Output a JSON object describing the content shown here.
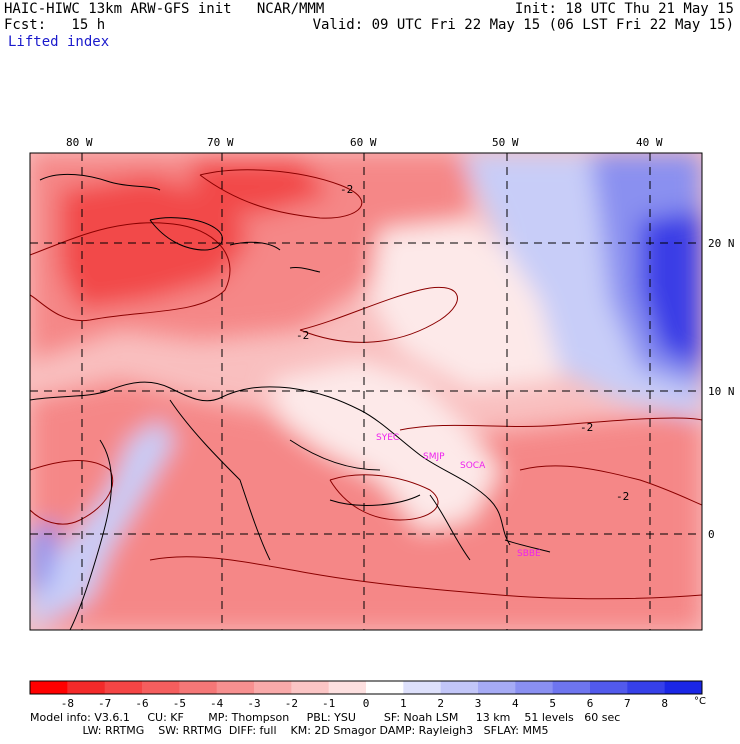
{
  "header": {
    "title": "HAIC-HIWC 13km ARW-GFS init   NCAR/MMM",
    "fcst": "Fcst:   15 h",
    "field": "Lifted index",
    "init": "Init: 18 UTC Thu 21 May 15",
    "valid": "Valid: 09 UTC Fri 22 May 15 (06 LST Fri 22 May 15)"
  },
  "map": {
    "lon_labels": [
      "80 W",
      "70 W",
      "60 W",
      "50 W",
      "40 W"
    ],
    "lat_labels": [
      "20 N",
      "10 N",
      "0"
    ],
    "contour_label": "-2",
    "stations": [
      "SYEC",
      "SMJP",
      "SOCA",
      "SBBE"
    ],
    "colors": {
      "red_strong": "#f24a4a",
      "red_mid": "#f58787",
      "red_light": "#f9bfbf",
      "neutral": "#fde9e9",
      "blue_light": "#c8cdf8",
      "blue_mid": "#8a90f0",
      "blue_strong": "#3a3ee6",
      "station_color": "#ee22ee"
    }
  },
  "colorbar": {
    "labels": [
      "-8",
      "-7",
      "-6",
      "-5",
      "-4",
      "-3",
      "-2",
      "-1",
      "0",
      "1",
      "2",
      "3",
      "4",
      "5",
      "6",
      "7",
      "8"
    ],
    "unit": "°C",
    "colors": [
      "#ff0000",
      "#f42a2a",
      "#f54545",
      "#f55e5e",
      "#f57777",
      "#f79090",
      "#f9aaaa",
      "#fbc5c5",
      "#fde0e0",
      "#ffffff",
      "#dde0fb",
      "#c2c6f8",
      "#a6abf5",
      "#8a90f2",
      "#6e75ef",
      "#525aec",
      "#3640e9",
      "#1a26e6"
    ]
  },
  "footer": {
    "line1": "Model info: V3.6.1     CU: KF       MP: Thompson     PBL: YSU        SF: Noah LSM     13 km    51 levels   60 sec",
    "line2": "               LW: RRTMG    SW: RRTMG  DIFF: full    KM: 2D Smagor DAMP: Rayleigh3   SFLAY: MM5"
  }
}
